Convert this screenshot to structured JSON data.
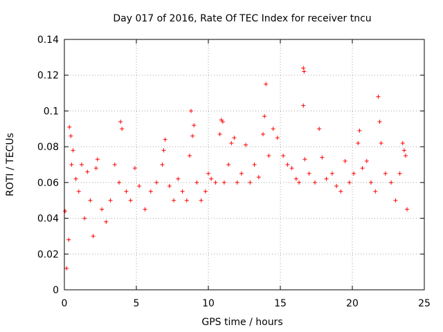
{
  "chart_data": {
    "type": "scatter",
    "title": "Day 017 of 2016, Rate Of TEC Index for receiver tncu",
    "xlabel": "GPS time / hours",
    "ylabel": "ROTI / TECUs",
    "xlim": [
      0,
      25
    ],
    "ylim": [
      0,
      0.14
    ],
    "xticks": [
      "0",
      "5",
      "10",
      "15",
      "20",
      "25"
    ],
    "yticks": [
      "0",
      "0.02",
      "0.04",
      "0.06",
      "0.08",
      "0.1",
      "0.12",
      "0.14"
    ],
    "grid": true,
    "marker": "plus",
    "color": "#ff0000",
    "series": [
      {
        "name": "ROTI",
        "points": [
          [
            0.05,
            0.044
          ],
          [
            0.15,
            0.012
          ],
          [
            0.3,
            0.028
          ],
          [
            0.35,
            0.091
          ],
          [
            0.45,
            0.086
          ],
          [
            0.5,
            0.07
          ],
          [
            0.6,
            0.078
          ],
          [
            0.8,
            0.062
          ],
          [
            1.0,
            0.055
          ],
          [
            1.2,
            0.07
          ],
          [
            1.4,
            0.04
          ],
          [
            1.6,
            0.066
          ],
          [
            1.8,
            0.05
          ],
          [
            2.0,
            0.03
          ],
          [
            2.2,
            0.068
          ],
          [
            2.3,
            0.073
          ],
          [
            2.6,
            0.045
          ],
          [
            2.9,
            0.038
          ],
          [
            3.2,
            0.05
          ],
          [
            3.5,
            0.07
          ],
          [
            3.8,
            0.06
          ],
          [
            3.9,
            0.094
          ],
          [
            4.0,
            0.09
          ],
          [
            4.3,
            0.055
          ],
          [
            4.6,
            0.05
          ],
          [
            4.9,
            0.068
          ],
          [
            5.2,
            0.058
          ],
          [
            5.6,
            0.045
          ],
          [
            6.0,
            0.055
          ],
          [
            6.4,
            0.06
          ],
          [
            6.8,
            0.07
          ],
          [
            6.9,
            0.078
          ],
          [
            7.0,
            0.084
          ],
          [
            7.3,
            0.058
          ],
          [
            7.6,
            0.05
          ],
          [
            7.9,
            0.062
          ],
          [
            8.2,
            0.055
          ],
          [
            8.5,
            0.05
          ],
          [
            8.7,
            0.075
          ],
          [
            8.8,
            0.1
          ],
          [
            8.9,
            0.086
          ],
          [
            9.0,
            0.092
          ],
          [
            9.2,
            0.06
          ],
          [
            9.5,
            0.05
          ],
          [
            9.8,
            0.055
          ],
          [
            10.0,
            0.065
          ],
          [
            10.2,
            0.062
          ],
          [
            10.5,
            0.06
          ],
          [
            10.8,
            0.087
          ],
          [
            10.9,
            0.095
          ],
          [
            11.0,
            0.094
          ],
          [
            11.1,
            0.06
          ],
          [
            11.4,
            0.07
          ],
          [
            11.6,
            0.082
          ],
          [
            11.8,
            0.085
          ],
          [
            12.0,
            0.06
          ],
          [
            12.3,
            0.065
          ],
          [
            12.6,
            0.081
          ],
          [
            12.9,
            0.06
          ],
          [
            13.2,
            0.07
          ],
          [
            13.5,
            0.063
          ],
          [
            13.8,
            0.087
          ],
          [
            13.9,
            0.097
          ],
          [
            14.0,
            0.115
          ],
          [
            14.2,
            0.075
          ],
          [
            14.5,
            0.09
          ],
          [
            14.8,
            0.085
          ],
          [
            15.2,
            0.075
          ],
          [
            15.5,
            0.07
          ],
          [
            15.8,
            0.068
          ],
          [
            16.1,
            0.062
          ],
          [
            16.3,
            0.06
          ],
          [
            16.6,
            0.124
          ],
          [
            16.65,
            0.122
          ],
          [
            16.6,
            0.103
          ],
          [
            16.7,
            0.073
          ],
          [
            17.0,
            0.065
          ],
          [
            17.4,
            0.06
          ],
          [
            17.7,
            0.09
          ],
          [
            17.9,
            0.074
          ],
          [
            18.2,
            0.062
          ],
          [
            18.6,
            0.065
          ],
          [
            18.9,
            0.058
          ],
          [
            19.2,
            0.055
          ],
          [
            19.5,
            0.072
          ],
          [
            19.8,
            0.06
          ],
          [
            20.1,
            0.065
          ],
          [
            20.4,
            0.082
          ],
          [
            20.5,
            0.089
          ],
          [
            20.7,
            0.068
          ],
          [
            21.0,
            0.072
          ],
          [
            21.3,
            0.06
          ],
          [
            21.6,
            0.055
          ],
          [
            21.8,
            0.108
          ],
          [
            21.9,
            0.094
          ],
          [
            22.0,
            0.082
          ],
          [
            22.3,
            0.065
          ],
          [
            22.7,
            0.06
          ],
          [
            23.0,
            0.05
          ],
          [
            23.3,
            0.065
          ],
          [
            23.5,
            0.082
          ],
          [
            23.6,
            0.078
          ],
          [
            23.7,
            0.075
          ],
          [
            23.8,
            0.045
          ]
        ]
      }
    ]
  }
}
